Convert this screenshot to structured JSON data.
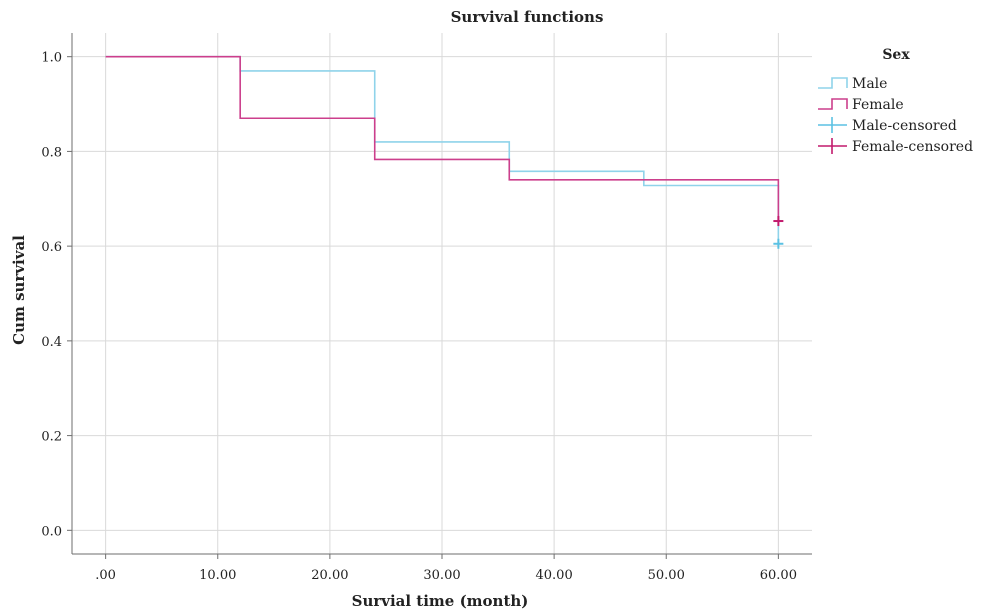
{
  "chart_data": {
    "type": "line",
    "title": "Survival functions",
    "xlabel": "Survial time (month)",
    "ylabel": "Cum survival",
    "xlim": [
      -3,
      63
    ],
    "ylim": [
      -0.05,
      1.05
    ],
    "x_ticks": [
      0,
      10,
      20,
      30,
      40,
      50,
      60
    ],
    "x_tick_labels": [
      ".00",
      "10.00",
      "20.00",
      "30.00",
      "40.00",
      "50.00",
      "60.00"
    ],
    "y_ticks": [
      0,
      0.2,
      0.4,
      0.6,
      0.8,
      1.0
    ],
    "y_tick_labels": [
      "0.0",
      "0.2",
      "0.4",
      "0.6",
      "0.8",
      "1.0"
    ],
    "grid": true,
    "legend": {
      "title": "Sex",
      "placement": "right",
      "entries": [
        "Male",
        "Female",
        "Male-censored",
        "Female-censored"
      ]
    },
    "series": [
      {
        "name": "Male",
        "color": "#8fd3ea",
        "step": true,
        "x": [
          0,
          12,
          24,
          36,
          48,
          60
        ],
        "y": [
          1.0,
          0.97,
          0.82,
          0.758,
          0.728,
          0.605
        ]
      },
      {
        "name": "Female",
        "color": "#cc3f8c",
        "step": true,
        "x": [
          0,
          12,
          24,
          36,
          60
        ],
        "y": [
          1.0,
          0.87,
          0.783,
          0.74,
          0.653
        ]
      }
    ],
    "censored": [
      {
        "name": "Male-censored",
        "color": "#5bc1e3",
        "x": 60,
        "y": 0.605
      },
      {
        "name": "Female-censored",
        "color": "#c21a6d",
        "x": 60,
        "y": 0.653
      }
    ]
  }
}
